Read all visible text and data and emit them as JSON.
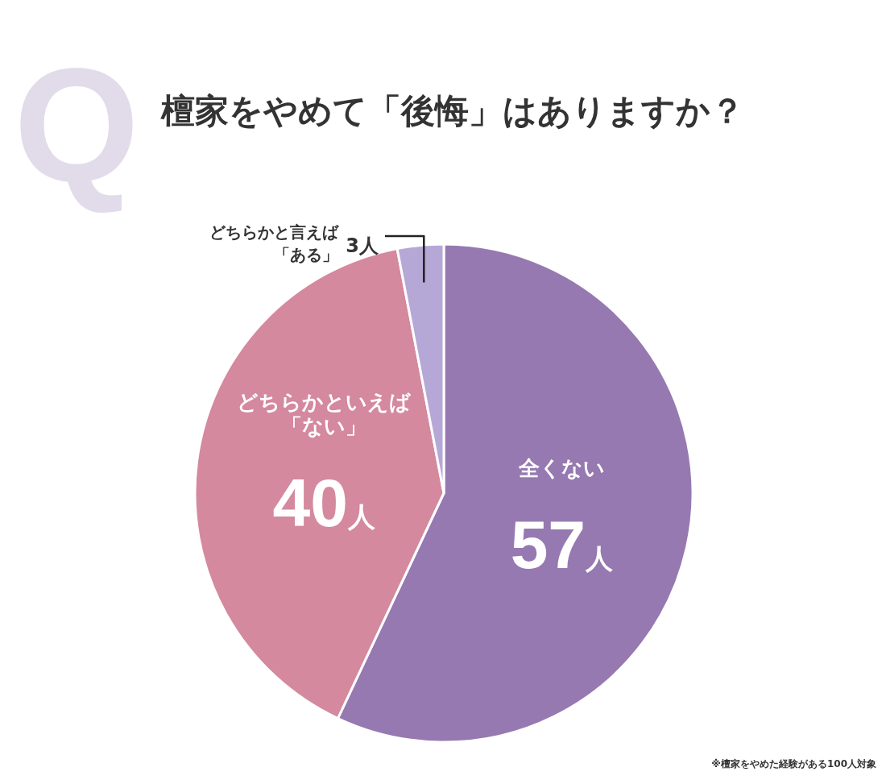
{
  "chart_data": {
    "type": "pie",
    "title": "檀家をやめて「後悔」はありますか？",
    "categories": [
      "全くない",
      "どちらかといえば「ない」",
      "どちらかと言えば「ある」"
    ],
    "values": [
      57,
      40,
      3
    ],
    "colors": [
      "#9679b1",
      "#d4899e",
      "#b6a8d6"
    ],
    "value_labels": [
      "57人",
      "40人",
      "3人"
    ],
    "annotations": [
      "Q",
      "※檀家をやめた経験がある100人対象"
    ]
  }
}
